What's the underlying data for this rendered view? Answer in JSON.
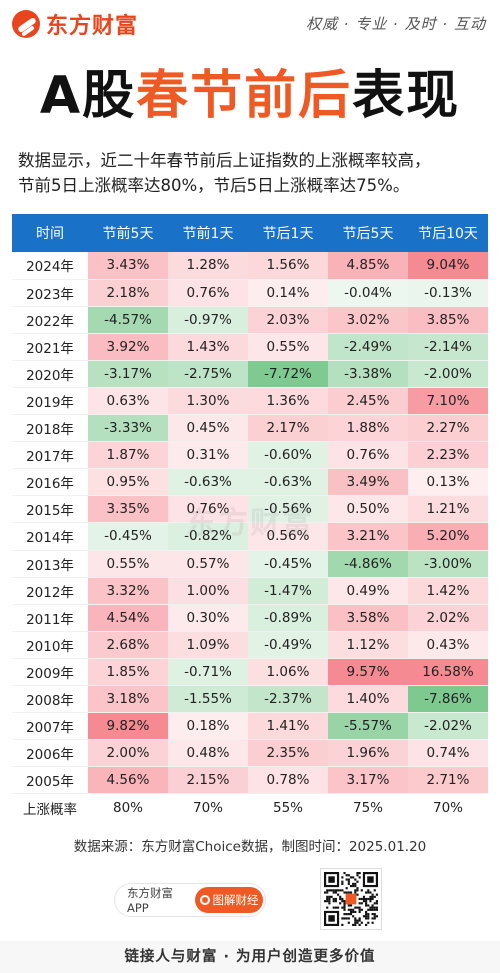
{
  "brand": {
    "name": "东方财富",
    "slogan": "权威 · 专业 · 及时 · 互动"
  },
  "title": {
    "part1": "A股",
    "part2": "春节前后",
    "part3": "表现"
  },
  "description": [
    "数据显示，近二十年春节前后上证指数的上涨概率较高，",
    "节前5日上涨概率达80%，节后5日上涨概率达75%。"
  ],
  "table": {
    "headers": [
      "时间",
      "节前5天",
      "节前1天",
      "节后1天",
      "节后5天",
      "节后10天"
    ],
    "rows": [
      {
        "year": "2024年",
        "values": [
          "3.43%",
          "1.28%",
          "1.56%",
          "4.85%",
          "9.04%"
        ]
      },
      {
        "year": "2023年",
        "values": [
          "2.18%",
          "0.76%",
          "0.14%",
          "-0.04%",
          "-0.13%"
        ]
      },
      {
        "year": "2022年",
        "values": [
          "-4.57%",
          "-0.97%",
          "2.03%",
          "3.02%",
          "3.85%"
        ]
      },
      {
        "year": "2021年",
        "values": [
          "3.92%",
          "1.43%",
          "0.55%",
          "-2.49%",
          "-2.14%"
        ]
      },
      {
        "year": "2020年",
        "values": [
          "-3.17%",
          "-2.75%",
          "-7.72%",
          "-3.38%",
          "-2.00%"
        ]
      },
      {
        "year": "2019年",
        "values": [
          "0.63%",
          "1.30%",
          "1.36%",
          "2.45%",
          "7.10%"
        ]
      },
      {
        "year": "2018年",
        "values": [
          "-3.33%",
          "0.45%",
          "2.17%",
          "1.88%",
          "2.27%"
        ]
      },
      {
        "year": "2017年",
        "values": [
          "1.87%",
          "0.31%",
          "-0.60%",
          "0.76%",
          "2.23%"
        ]
      },
      {
        "year": "2016年",
        "values": [
          "0.95%",
          "-0.63%",
          "-0.63%",
          "3.49%",
          "0.13%"
        ]
      },
      {
        "year": "2015年",
        "values": [
          "3.35%",
          "0.76%",
          "-0.56%",
          "0.50%",
          "1.21%"
        ]
      },
      {
        "year": "2014年",
        "values": [
          "-0.45%",
          "-0.82%",
          "0.56%",
          "3.21%",
          "5.20%"
        ]
      },
      {
        "year": "2013年",
        "values": [
          "0.55%",
          "0.57%",
          "-0.45%",
          "-4.86%",
          "-3.00%"
        ]
      },
      {
        "year": "2012年",
        "values": [
          "3.32%",
          "1.00%",
          "-1.47%",
          "0.49%",
          "1.42%"
        ]
      },
      {
        "year": "2011年",
        "values": [
          "4.54%",
          "0.30%",
          "-0.89%",
          "3.58%",
          "2.02%"
        ]
      },
      {
        "year": "2010年",
        "values": [
          "2.68%",
          "1.09%",
          "-0.49%",
          "1.12%",
          "0.43%"
        ]
      },
      {
        "year": "2009年",
        "values": [
          "1.85%",
          "-0.71%",
          "1.06%",
          "9.57%",
          "16.58%"
        ]
      },
      {
        "year": "2008年",
        "values": [
          "3.18%",
          "-1.55%",
          "-2.37%",
          "1.40%",
          "-7.86%"
        ]
      },
      {
        "year": "2007年",
        "values": [
          "9.82%",
          "0.18%",
          "1.41%",
          "-5.57%",
          "-2.02%"
        ]
      },
      {
        "year": "2006年",
        "values": [
          "2.00%",
          "0.48%",
          "2.35%",
          "1.96%",
          "0.74%"
        ]
      },
      {
        "year": "2005年",
        "values": [
          "4.56%",
          "2.15%",
          "0.78%",
          "3.17%",
          "2.71%"
        ]
      }
    ],
    "footer": {
      "label": "上涨概率",
      "values": [
        "80%",
        "70%",
        "55%",
        "75%",
        "70%"
      ]
    }
  },
  "colors": {
    "header_bg": "#1a72c8",
    "positive": "#f4757f",
    "negative": "#57b96e",
    "accent": "#ef5a24"
  },
  "source": "数据来源：东方财富Choice数据，制图时间：2025.01.20",
  "app": {
    "name": "东方财富APP",
    "button": "图解财经",
    "icon": "search-icon"
  },
  "watermark": "东方财富",
  "footer_slogan": "链接人与财富 · 为用户创造更多价值"
}
